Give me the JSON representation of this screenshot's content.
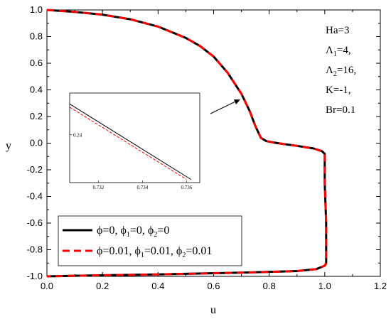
{
  "chart_data": {
    "type": "line",
    "xlabel": "u",
    "ylabel": "y",
    "xlim": [
      0.0,
      1.2
    ],
    "ylim": [
      -1.0,
      1.0
    ],
    "x_ticks": [
      "0.0",
      "0.2",
      "0.4",
      "0.6",
      "0.8",
      "1.0",
      "1.2"
    ],
    "y_ticks": [
      "1.0",
      "0.8",
      "0.6",
      "0.4",
      "0.2",
      "0.0",
      "-0.2",
      "-0.4",
      "-0.6",
      "-0.8",
      "-1.0"
    ],
    "annotations": [
      "Ha=3",
      "Λ",
      "1",
      "=4,",
      "Λ",
      "2",
      "=16,",
      "K=-1,",
      "Br=0.1"
    ],
    "legend": {
      "placement": "bottom-left",
      "entries": [
        {
          "parts": [
            "ϕ=0, ϕ",
            "1",
            "=0, ϕ",
            "2",
            "=0"
          ],
          "color": "#000000",
          "style": "solid"
        },
        {
          "parts": [
            "ϕ=0.01, ϕ",
            "1",
            "=0.01, ϕ",
            "2",
            "=0.01"
          ],
          "color": "#ff0000",
          "style": "dashed"
        }
      ]
    },
    "series": [
      {
        "color": "#000000",
        "style": "solid",
        "points": [
          [
            0.0,
            1.0
          ],
          [
            0.1,
            0.985
          ],
          [
            0.2,
            0.965
          ],
          [
            0.3,
            0.93
          ],
          [
            0.4,
            0.875
          ],
          [
            0.5,
            0.79
          ],
          [
            0.55,
            0.73
          ],
          [
            0.6,
            0.65
          ],
          [
            0.65,
            0.53
          ],
          [
            0.7,
            0.37
          ],
          [
            0.73,
            0.24
          ],
          [
            0.75,
            0.13
          ],
          [
            0.77,
            0.04
          ],
          [
            0.79,
            0.015
          ],
          [
            0.83,
            0.0
          ],
          [
            0.9,
            -0.02
          ],
          [
            0.96,
            -0.04
          ],
          [
            0.99,
            -0.06
          ],
          [
            1.0,
            -0.08
          ],
          [
            1.0,
            -0.3
          ],
          [
            1.005,
            -0.6
          ],
          [
            1.005,
            -0.9
          ],
          [
            1.0,
            -0.92
          ],
          [
            0.97,
            -0.945
          ],
          [
            0.9,
            -0.96
          ],
          [
            0.7,
            -0.972
          ],
          [
            0.4,
            -0.985
          ],
          [
            0.1,
            -0.995
          ],
          [
            0.0,
            -1.0
          ]
        ]
      },
      {
        "color": "#ff0000",
        "style": "dashed",
        "points": [
          [
            0.0,
            1.0
          ],
          [
            0.1,
            0.985
          ],
          [
            0.2,
            0.965
          ],
          [
            0.3,
            0.93
          ],
          [
            0.4,
            0.875
          ],
          [
            0.5,
            0.79
          ],
          [
            0.55,
            0.73
          ],
          [
            0.6,
            0.65
          ],
          [
            0.65,
            0.53
          ],
          [
            0.7,
            0.37
          ],
          [
            0.73,
            0.24
          ],
          [
            0.75,
            0.13
          ],
          [
            0.77,
            0.04
          ],
          [
            0.79,
            0.015
          ],
          [
            0.83,
            0.0
          ],
          [
            0.9,
            -0.02
          ],
          [
            0.96,
            -0.04
          ],
          [
            0.99,
            -0.06
          ],
          [
            1.0,
            -0.08
          ],
          [
            1.0,
            -0.3
          ],
          [
            1.005,
            -0.6
          ],
          [
            1.005,
            -0.9
          ],
          [
            1.0,
            -0.92
          ],
          [
            0.97,
            -0.945
          ],
          [
            0.9,
            -0.96
          ],
          [
            0.7,
            -0.972
          ],
          [
            0.4,
            -0.985
          ],
          [
            0.1,
            -0.995
          ],
          [
            0.0,
            -1.0
          ]
        ]
      }
    ],
    "inset": {
      "xlim": [
        0.7307,
        0.7366
      ],
      "ylim": [
        0.2325,
        0.2465
      ],
      "x_ticks": [
        "0.732",
        "0.734",
        "0.736"
      ],
      "y_ticks": [
        "0.24"
      ],
      "series": [
        {
          "color": "#000000",
          "style": "solid",
          "points": [
            [
              0.7307,
              0.2448
            ],
            [
              0.7362,
              0.233
            ]
          ]
        },
        {
          "color": "#ff0000",
          "style": "dashed",
          "points": [
            [
              0.7307,
              0.2443
            ],
            [
              0.736,
              0.233
            ]
          ]
        }
      ]
    }
  }
}
